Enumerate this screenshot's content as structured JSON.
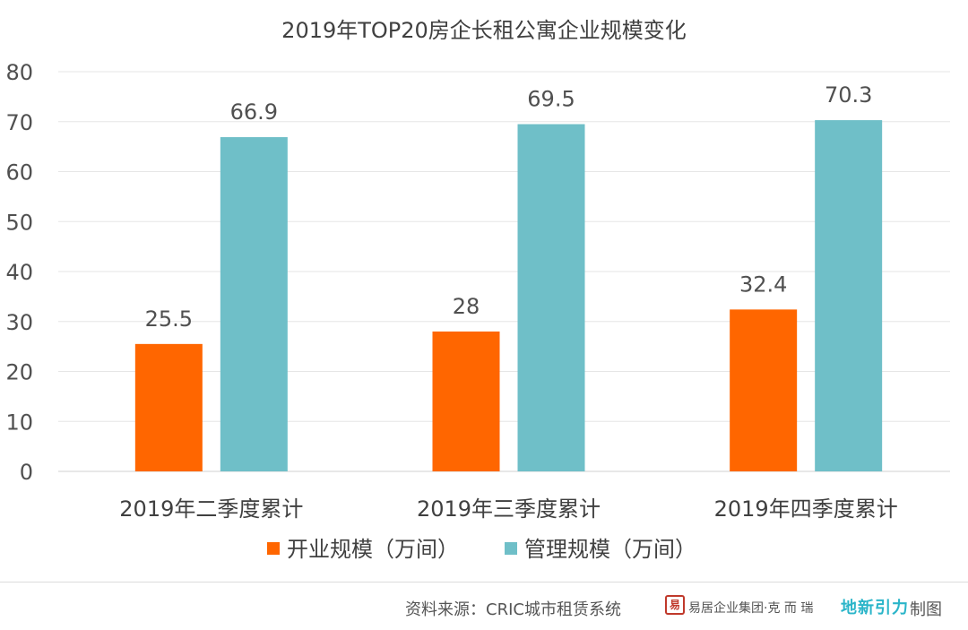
{
  "chart_data": {
    "type": "bar",
    "title": "2019年TOP20房企长租公寓企业规模变化",
    "categories": [
      "2019年二季度累计",
      "2019年三季度累计",
      "2019年四季度累计"
    ],
    "series": [
      {
        "name": "开业规模（万间）",
        "values": [
          25.5,
          28,
          32.4
        ],
        "color": "#ff6600"
      },
      {
        "name": "管理规模（万间）",
        "values": [
          66.9,
          69.5,
          70.3
        ],
        "color": "#6fbfc8"
      }
    ],
    "ylim": [
      0,
      80
    ],
    "yticks": [
      0,
      10,
      20,
      30,
      40,
      50,
      60,
      70,
      80
    ],
    "grid": true,
    "legend_position": "bottom",
    "xlabel": "",
    "ylabel": ""
  },
  "footer": {
    "source": "资料来源：CRIC城市租赁系统",
    "org": "易居企业集团·克 而 瑞",
    "brand": "地新引力",
    "made": "制图",
    "seal_text": "易"
  }
}
